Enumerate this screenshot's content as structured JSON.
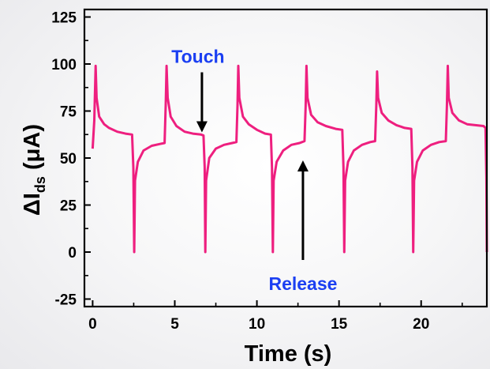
{
  "chart_data": {
    "type": "line",
    "xlabel": "Time (s)",
    "ylabel": {
      "prefix": "ΔI",
      "subscript": "ds",
      "suffix": " (μA)"
    },
    "xlim": [
      -0.5,
      24
    ],
    "ylim": [
      -29,
      129
    ],
    "xticks": [
      0,
      5,
      10,
      15,
      20
    ],
    "yticks": [
      -25,
      0,
      25,
      50,
      75,
      100,
      125
    ],
    "grid": false,
    "series": [
      {
        "color": "#ee1f7f",
        "points": [
          [
            0.0,
            55
          ],
          [
            0.1,
            70
          ],
          [
            0.18,
            99
          ],
          [
            0.24,
            82
          ],
          [
            0.4,
            72
          ],
          [
            0.7,
            68
          ],
          [
            1.0,
            66
          ],
          [
            1.5,
            64
          ],
          [
            2.0,
            63
          ],
          [
            2.4,
            62.5
          ],
          [
            2.48,
            45
          ],
          [
            2.53,
            0
          ],
          [
            2.58,
            38
          ],
          [
            2.75,
            48
          ],
          [
            3.1,
            54
          ],
          [
            3.6,
            56.5
          ],
          [
            4.1,
            57.5
          ],
          [
            4.38,
            58
          ],
          [
            4.45,
            78
          ],
          [
            4.5,
            99
          ],
          [
            4.57,
            82
          ],
          [
            4.75,
            72
          ],
          [
            5.1,
            67
          ],
          [
            5.6,
            64
          ],
          [
            6.1,
            63
          ],
          [
            6.6,
            62.5
          ],
          [
            6.75,
            62
          ],
          [
            6.82,
            45
          ],
          [
            6.86,
            0
          ],
          [
            6.91,
            38
          ],
          [
            7.1,
            50
          ],
          [
            7.5,
            55
          ],
          [
            8.0,
            57
          ],
          [
            8.5,
            58
          ],
          [
            8.75,
            58.5
          ],
          [
            8.82,
            78
          ],
          [
            8.87,
            99
          ],
          [
            8.93,
            82
          ],
          [
            9.15,
            72
          ],
          [
            9.5,
            68
          ],
          [
            10.0,
            65
          ],
          [
            10.5,
            63
          ],
          [
            10.85,
            62.5
          ],
          [
            10.92,
            45
          ],
          [
            10.97,
            0
          ],
          [
            11.02,
            38
          ],
          [
            11.2,
            48
          ],
          [
            11.6,
            54
          ],
          [
            12.1,
            57
          ],
          [
            12.6,
            58
          ],
          [
            12.9,
            59
          ],
          [
            12.97,
            78
          ],
          [
            13.02,
            99
          ],
          [
            13.08,
            82
          ],
          [
            13.3,
            73
          ],
          [
            13.7,
            69
          ],
          [
            14.2,
            67
          ],
          [
            14.8,
            65.5
          ],
          [
            15.2,
            65
          ],
          [
            15.27,
            45
          ],
          [
            15.32,
            0
          ],
          [
            15.37,
            38
          ],
          [
            15.55,
            48
          ],
          [
            15.9,
            54
          ],
          [
            16.4,
            57
          ],
          [
            16.9,
            58.5
          ],
          [
            17.2,
            59
          ],
          [
            17.27,
            78
          ],
          [
            17.32,
            96
          ],
          [
            17.38,
            82
          ],
          [
            17.6,
            74
          ],
          [
            18.0,
            70
          ],
          [
            18.5,
            67.5
          ],
          [
            19.0,
            66
          ],
          [
            19.4,
            65.5
          ],
          [
            19.47,
            45
          ],
          [
            19.52,
            0
          ],
          [
            19.57,
            38
          ],
          [
            19.75,
            48
          ],
          [
            20.1,
            54
          ],
          [
            20.6,
            57
          ],
          [
            21.1,
            58.5
          ],
          [
            21.5,
            59
          ],
          [
            21.57,
            78
          ],
          [
            21.62,
            99
          ],
          [
            21.68,
            82
          ],
          [
            21.9,
            74
          ],
          [
            22.3,
            70
          ],
          [
            22.8,
            68
          ],
          [
            23.3,
            67.5
          ],
          [
            23.8,
            67
          ],
          [
            23.92,
            66
          ],
          [
            23.97,
            40
          ],
          [
            24.0,
            0
          ]
        ]
      }
    ],
    "annotations": [
      {
        "text": "Touch",
        "color": "#1b3ff2",
        "arrow": "down",
        "at": [
          6.75,
          62
        ]
      },
      {
        "text": "Release",
        "color": "#1b3ff2",
        "arrow": "up",
        "at": [
          12.9,
          50
        ]
      }
    ]
  }
}
